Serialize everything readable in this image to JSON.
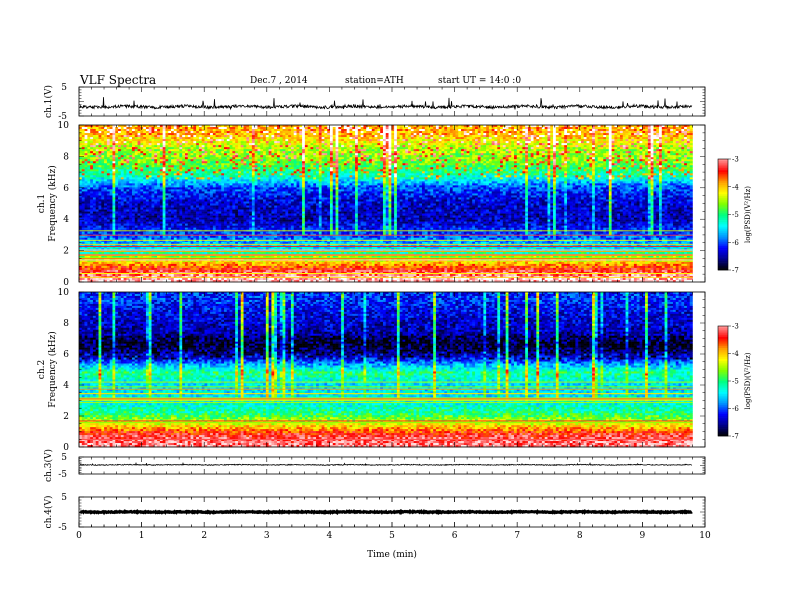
{
  "header": {
    "title": "VLF Spectra",
    "date": "Dec.7 , 2014",
    "station": "station=ATH",
    "start": "start UT = 14:0 :0"
  },
  "chart_data": {
    "type": "heatmap",
    "xlabel": "Time (min)",
    "xlim": [
      0,
      10
    ],
    "x_ticks": [
      "0",
      "1",
      "2",
      "3",
      "4",
      "5",
      "6",
      "7",
      "8",
      "9",
      "10"
    ],
    "data_end_min": 9.8,
    "waveform_panels": [
      {
        "id": "ch1",
        "ylabel": "ch.1(V)",
        "ylim": [
          -5,
          5
        ],
        "tick_labels": [
          "5",
          "-5"
        ],
        "baseline": -1.8,
        "noise_amp": 0.5,
        "spike_amp": 2.5
      },
      {
        "id": "ch3",
        "ylabel": "ch.3(V)",
        "ylim": [
          -5,
          5
        ],
        "tick_labels": [
          "5",
          "-5"
        ],
        "baseline": 0.4,
        "noise_amp": 0.25,
        "spike_amp": 0.6
      },
      {
        "id": "ch4",
        "ylabel": "ch.4(V)",
        "ylim": [
          -5,
          5
        ],
        "tick_labels": [
          "5",
          "-5"
        ],
        "baseline": 0.0,
        "noise_amp": 0.15,
        "spike_amp": 0.0
      }
    ],
    "spectrogram_panels": [
      {
        "id": "ch1",
        "ylabel_line1": "ch.1",
        "ylabel_line2": "Frequency (kHz)",
        "ylim": [
          0,
          10
        ],
        "y_ticks": [
          "0",
          "2",
          "4",
          "6",
          "8",
          "10"
        ],
        "colorbar": {
          "label": "log(PSD)(V²/Hz)",
          "range": [
            -7,
            -3
          ],
          "tick_labels": [
            "-3",
            "-4",
            "-5",
            "-6",
            "-7"
          ]
        },
        "profile": [
          {
            "f": 0.2,
            "level": 0.95
          },
          {
            "f": 0.7,
            "level": 0.85
          },
          {
            "f": 1.2,
            "level": 0.7
          },
          {
            "f": 2.0,
            "level": 0.38
          },
          {
            "f": 3.0,
            "level": 0.22
          },
          {
            "f": 4.0,
            "level": 0.12
          },
          {
            "f": 5.0,
            "level": 0.14
          },
          {
            "f": 6.0,
            "level": 0.22
          },
          {
            "f": 6.8,
            "level": 0.42
          },
          {
            "f": 7.5,
            "level": 0.52
          },
          {
            "f": 8.5,
            "level": 0.58
          },
          {
            "f": 9.5,
            "level": 0.72
          }
        ]
      },
      {
        "id": "ch2",
        "ylabel_line1": "ch.2",
        "ylabel_line2": "Frequency (kHz)",
        "ylim": [
          0,
          10
        ],
        "y_ticks": [
          "0",
          "2",
          "4",
          "6",
          "8",
          "10"
        ],
        "colorbar": {
          "label": "log(PSD)(V²/Hz)",
          "range": [
            -7,
            -3
          ],
          "tick_labels": [
            "-3",
            "-4",
            "-5",
            "-6",
            "-7"
          ]
        },
        "profile": [
          {
            "f": 0.2,
            "level": 0.9
          },
          {
            "f": 0.8,
            "level": 0.85
          },
          {
            "f": 1.5,
            "level": 0.62
          },
          {
            "f": 2.2,
            "level": 0.45
          },
          {
            "f": 3.0,
            "level": 0.36
          },
          {
            "f": 4.0,
            "level": 0.34
          },
          {
            "f": 4.8,
            "level": 0.45
          },
          {
            "f": 5.6,
            "level": 0.2
          },
          {
            "f": 6.5,
            "level": 0.05
          },
          {
            "f": 7.5,
            "level": 0.12
          },
          {
            "f": 8.5,
            "level": 0.15
          },
          {
            "f": 9.5,
            "level": 0.2
          }
        ]
      }
    ],
    "colormap": [
      "#000000",
      "#00008c",
      "#0000ff",
      "#0096ff",
      "#00ffff",
      "#00ff7f",
      "#7fff00",
      "#ffff00",
      "#ffa000",
      "#ff0000",
      "#ff8c8c",
      "#ffffff"
    ]
  }
}
